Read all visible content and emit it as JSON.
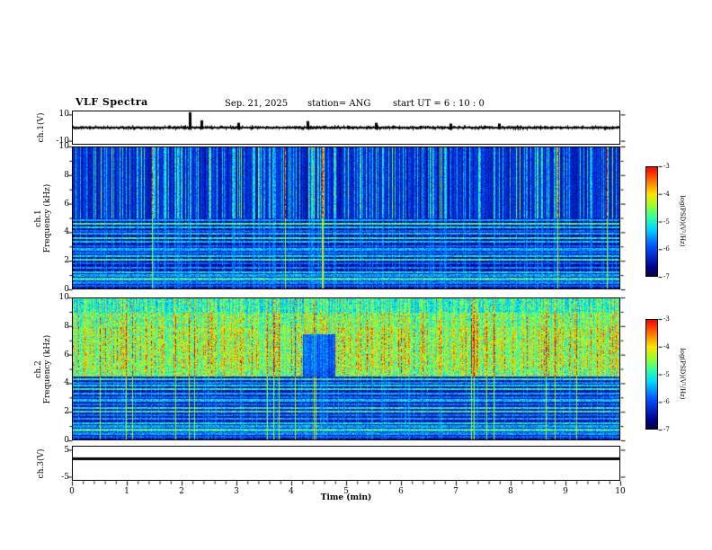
{
  "header": {
    "title": "VLF Spectra",
    "date": "Sep. 21, 2025",
    "station": "station= ANG",
    "start_ut": "start UT =  6 : 10 : 0"
  },
  "xaxis": {
    "label": "Time (min)",
    "ticks": [
      "0",
      "1",
      "2",
      "3",
      "4",
      "5",
      "6",
      "7",
      "8",
      "9",
      "10"
    ],
    "lim": [
      0,
      10
    ]
  },
  "colorbar": {
    "label": "log(PSD)(V²/Hz)",
    "ticks": [
      "-3",
      "-4",
      "-5",
      "-6",
      "-7"
    ],
    "value_range": [
      -3,
      -7
    ]
  },
  "panels": {
    "ch1_wave": {
      "ylabel": "ch.1(V)"
    },
    "ch1_spec": {
      "ylabel_line1": "ch.1",
      "ylabel_line2": "Frequency (kHz)"
    },
    "ch2_spec": {
      "ylabel_line1": "ch.2",
      "ylabel_line2": "Frequency (kHz)"
    },
    "ch3_wave": {
      "ylabel": "ch.3(V)"
    }
  },
  "chart_data": [
    {
      "type": "line",
      "name": "ch1_waveform",
      "ylabel": "ch.1(V)",
      "ylim": [
        -13,
        13
      ],
      "yticks": [
        10,
        -10
      ],
      "xlim": [
        0,
        10
      ],
      "description": "Broadband noise trace centered on 0 V, envelope about ±1.5 V, impulsive spikes (largest near t=2.13 min reaching ~+8 V)",
      "spikes_min": [
        [
          2.13,
          0.95
        ],
        [
          2.35,
          0.45
        ],
        [
          3.02,
          0.3
        ],
        [
          4.3,
          0.4
        ],
        [
          5.55,
          0.3
        ],
        [
          6.9,
          0.25
        ],
        [
          7.8,
          0.25
        ]
      ]
    },
    {
      "type": "heatmap",
      "name": "ch1_spectrogram",
      "ylabel": "ch.1 Frequency (kHz)",
      "ylim": [
        0,
        10
      ],
      "yticks": [
        0,
        2,
        4,
        6,
        8,
        10
      ],
      "xlim": [
        0,
        10
      ],
      "value_label": "log(PSD)(V²/Hz)",
      "value_range": [
        -7,
        -3
      ],
      "colormap": "rainbow",
      "description": "Blue background with dense cyan/green vertical sferic streaks above ~5 kHz, narrow horizontal transmitter lines below 5 kHz, one strong red streak near t≈4.55 min",
      "render": {
        "split_khz": 5,
        "low_base": 0.09,
        "streak_levels": [
          [
            0.004,
            0.88,
            0.92
          ],
          [
            0.05,
            0.52,
            0.62
          ],
          [
            0.22,
            0.36,
            0.5
          ]
        ],
        "base_level": [
          0.13,
          0.26
        ],
        "red_streaks_min": [
          4.55
        ],
        "bands_khz": [
          [
            4.85,
            0.38
          ],
          [
            4.6,
            0.55
          ],
          [
            4.35,
            0.45
          ],
          [
            4.1,
            0.3
          ],
          [
            3.9,
            0.42
          ],
          [
            3.6,
            0.5
          ],
          [
            3.35,
            0.42
          ],
          [
            3.05,
            0.3
          ],
          [
            2.8,
            0.4
          ],
          [
            2.55,
            0.3
          ],
          [
            2.3,
            0.45
          ],
          [
            2.05,
            0.52
          ],
          [
            1.8,
            0.3
          ],
          [
            1.5,
            0.35
          ],
          [
            1.2,
            0.45
          ],
          [
            0.95,
            0.38
          ],
          [
            0.7,
            0.5
          ],
          [
            0.45,
            0.35
          ],
          [
            0.2,
            0.3
          ]
        ]
      }
    },
    {
      "type": "heatmap",
      "name": "ch2_spectrogram",
      "ylabel": "ch.2 Frequency (kHz)",
      "ylim": [
        0,
        10
      ],
      "yticks": [
        0,
        2,
        4,
        6,
        8,
        10
      ],
      "xlim": [
        0,
        10
      ],
      "value_label": "log(PSD)(V²/Hz)",
      "value_range": [
        -7,
        -3
      ],
      "colormap": "rainbow",
      "description": "Bright green/yellow field above ~4.5 kHz with orange-red vertical streaks, darker notch near t≈4.4 min between 4.5 and 7.5 kHz, horizontal transmitter lines below 4.5 kHz",
      "render": {
        "split_khz": 4.5,
        "low_base": 0.11,
        "streak_levels": [
          [
            0.03,
            0.85,
            0.95
          ],
          [
            0.1,
            0.7,
            0.8
          ],
          [
            0.3,
            0.62,
            0.72
          ]
        ],
        "base_level": [
          0.5,
          0.62
        ],
        "dip_min": [
          4.2,
          4.8
        ],
        "dip_khz": [
          4.5,
          7.5
        ],
        "top_fade": true,
        "mid_boost": true,
        "bands_khz": [
          [
            4.3,
            0.5
          ],
          [
            4.05,
            0.35
          ],
          [
            3.85,
            0.45
          ],
          [
            3.6,
            0.5
          ],
          [
            3.3,
            0.4
          ],
          [
            3.05,
            0.32
          ],
          [
            2.8,
            0.42
          ],
          [
            2.5,
            0.32
          ],
          [
            2.25,
            0.48
          ],
          [
            2.0,
            0.5
          ],
          [
            1.75,
            0.32
          ],
          [
            1.5,
            0.38
          ],
          [
            1.2,
            0.46
          ],
          [
            0.95,
            0.38
          ],
          [
            0.7,
            0.5
          ],
          [
            0.45,
            0.36
          ],
          [
            0.2,
            0.3
          ]
        ]
      }
    },
    {
      "type": "line",
      "name": "ch3_waveform",
      "ylabel": "ch.3(V)",
      "ylim": [
        -6.5,
        6.5
      ],
      "yticks": [
        5,
        -5
      ],
      "xlim": [
        0,
        10
      ],
      "description": "Constant flat heavy line at about +2 V",
      "line_value_v": 2
    }
  ]
}
